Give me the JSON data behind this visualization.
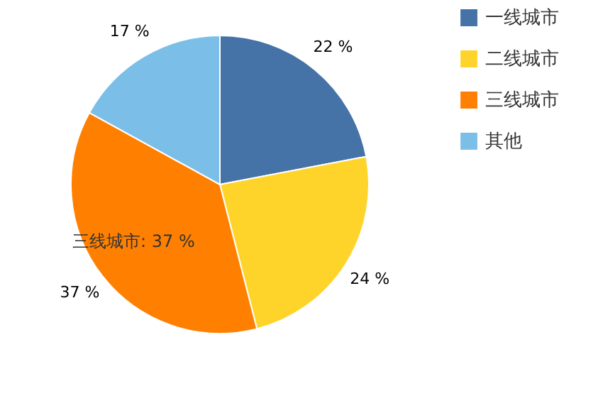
{
  "chart_data": {
    "type": "pie",
    "categories": [
      "一线城市",
      "二线城市",
      "三线城市",
      "其他"
    ],
    "values": [
      22,
      24,
      37,
      17
    ],
    "colors": [
      "#4572a7",
      "#ffd42a",
      "#ff8000",
      "#7bbfe8"
    ],
    "value_labels": [
      "22 %",
      "24 %",
      "37 %",
      "17 %"
    ],
    "legend": "top right",
    "annotations": [
      "三线城市: 37 %"
    ]
  }
}
